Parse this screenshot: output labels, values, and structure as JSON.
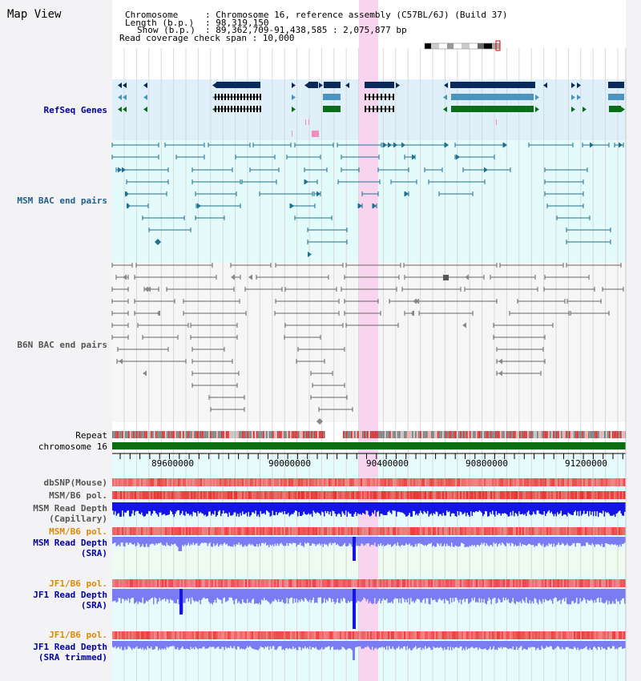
{
  "page_title": "Map View",
  "header": {
    "chromosome_key": "Chromosome",
    "chromosome_value": ": Chromosome 16, reference assembly (C57BL/6J) (Build 37)",
    "length_key": "Length (b.p.)",
    "length_value": ": 98,319,150",
    "show_key": "Show (b.p.)",
    "show_value": ": 89,362,709-91,438,585 : 2,075,877 bp",
    "read_coverage": "Read coverage check span : 10,000"
  },
  "tracks": {
    "refseq": "RefSeq Genes",
    "msm_bac": "MSM BAC end pairs",
    "b6n_bac": "B6N BAC end pairs",
    "repeat": "Repeat",
    "chromosome": "chromosome 16",
    "dbsnp": "dbSNP(Mouse)",
    "msm_b6_pol_1": "MSM/B6 pol.",
    "msm_read_depth_cap_1": "MSM Read Depth",
    "msm_read_depth_cap_2": "(Capillary)",
    "msm_b6_pol_2": "MSM/B6 pol.",
    "msm_read_depth_sra_1": "MSM Read Depth",
    "msm_read_depth_sra_2": "(SRA)",
    "jf1_b6_pol_1": "JF1/B6 pol.",
    "jf1_read_depth_sra_1": "JF1 Read Depth",
    "jf1_read_depth_sra_2": "(SRA)",
    "jf1_b6_pol_2": "JF1/B6 pol.",
    "jf1_read_depth_trim_1": "JF1 Read Depth",
    "jf1_read_depth_trim_2": "(SRA trimmed)"
  },
  "axis_ticks": [
    "89600000",
    "90000000",
    "90400000",
    "90800000",
    "91200000"
  ],
  "colors": {
    "refseq_bg": "#dff0fb",
    "bac_bg": "#e3fbfb",
    "highlight": "#f9d4ee",
    "gene_dark": "#0b2a5c",
    "gene_mid": "#4a94bf",
    "gene_green": "#0a6e18",
    "msm_line": "#1f6f90",
    "b6n_line": "#666666",
    "chrom_green": "#0a6e10",
    "depth_blue": "#1414e6",
    "depth_light": "#7b7bf2",
    "pol_red": "#ea3b3b",
    "label_blue": "#0000a0",
    "label_orange": "#e08a00"
  }
}
